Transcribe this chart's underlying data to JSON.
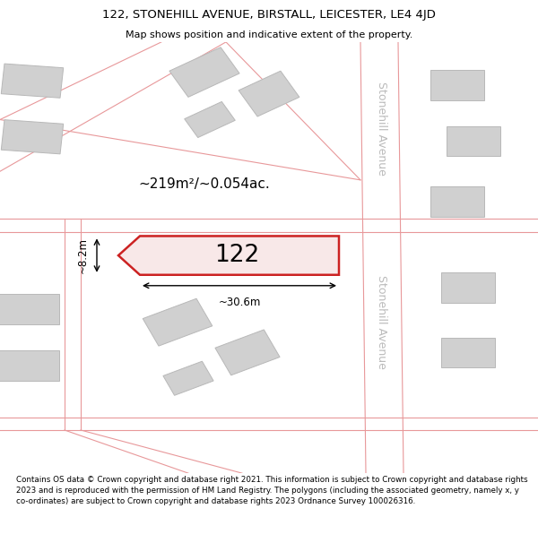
{
  "title_line1": "122, STONEHILL AVENUE, BIRSTALL, LEICESTER, LE4 4JD",
  "title_line2": "Map shows position and indicative extent of the property.",
  "footer_text": "Contains OS data © Crown copyright and database right 2021. This information is subject to Crown copyright and database rights 2023 and is reproduced with the permission of HM Land Registry. The polygons (including the associated geometry, namely x, y co-ordinates) are subject to Crown copyright and database rights 2023 Ordnance Survey 100026316.",
  "property_label": "122",
  "area_label": "~219m²/~0.054ac.",
  "width_label": "~30.6m",
  "height_label": "~8.2m",
  "map_bg": "#f0f0f0",
  "road_color": "#e8989a",
  "building_fill": "#d0d0d0",
  "building_outline": "#b8b8b8",
  "highlight_fill": "#f8e8e8",
  "highlight_outline": "#cc2222",
  "street_label_color": "#bbbbbb",
  "street_label": "Stonehill Avenue"
}
